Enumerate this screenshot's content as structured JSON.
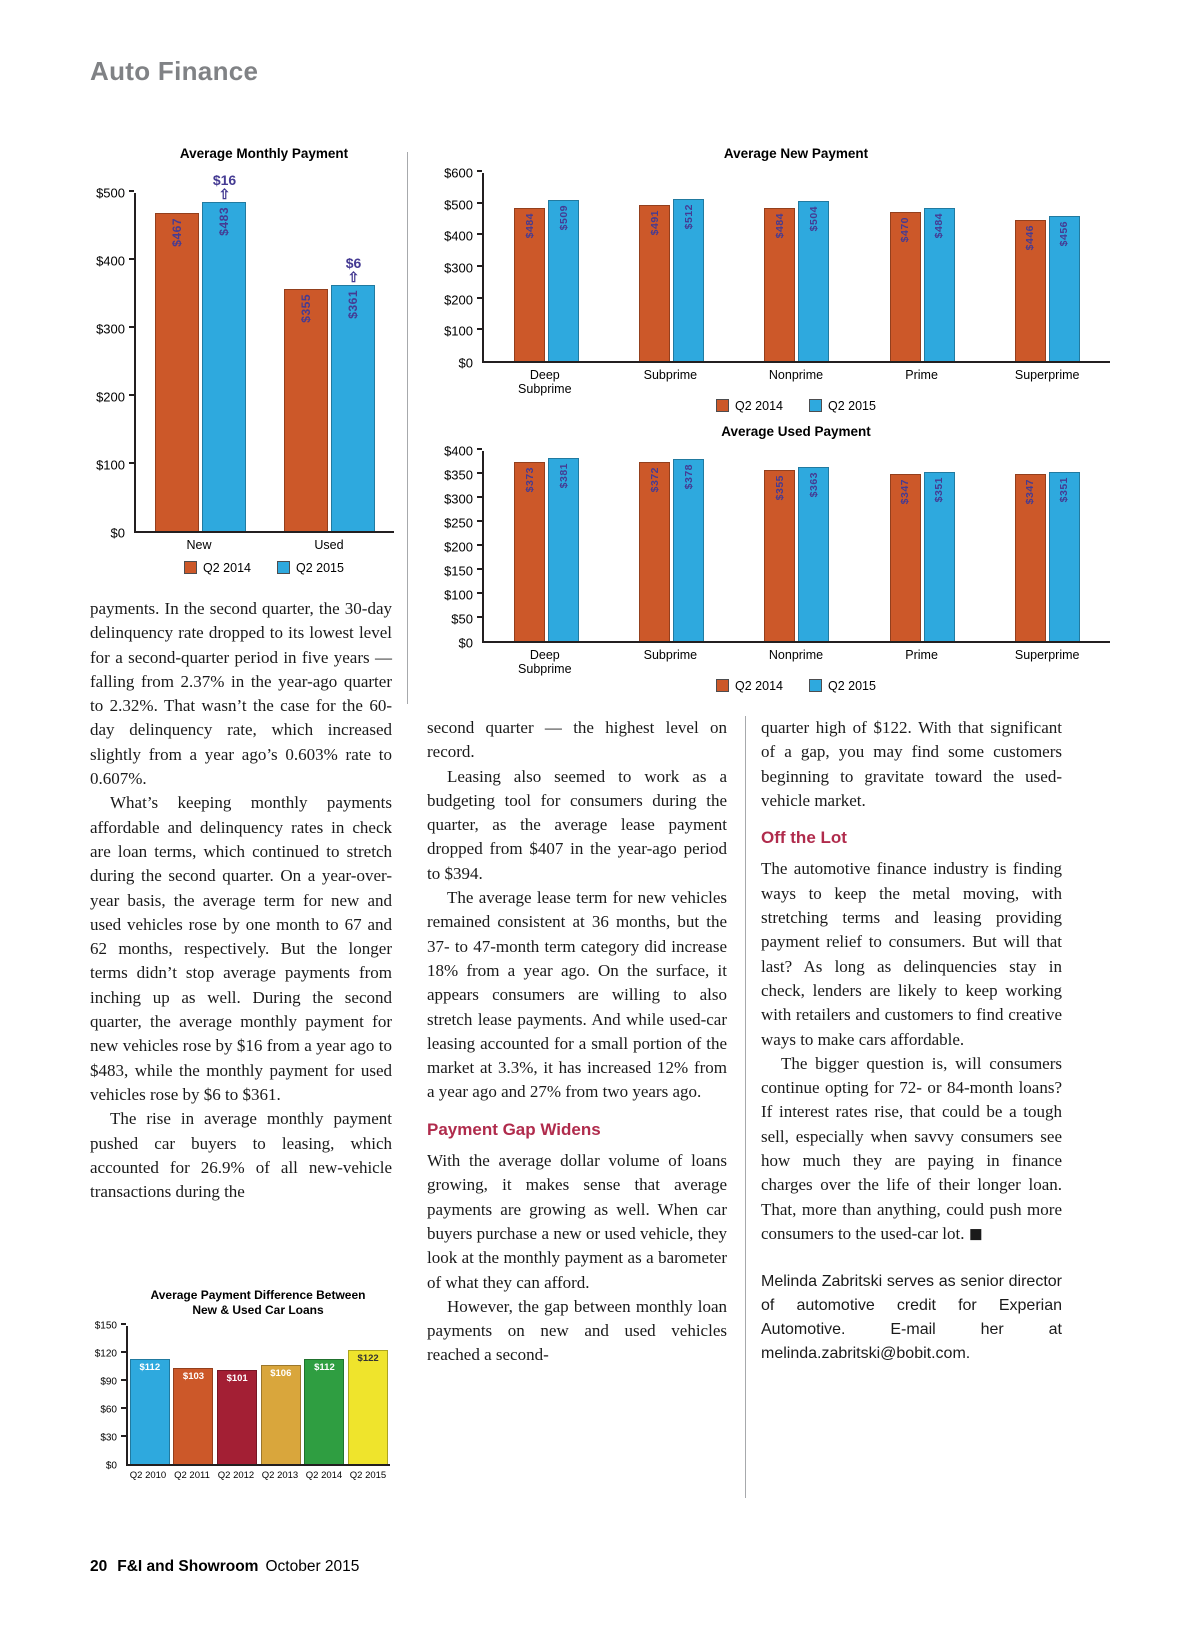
{
  "page": {
    "section_title": "Auto Finance",
    "footer": {
      "page_number": "20",
      "magazine": "F&I and Showroom",
      "issue": "October 2015"
    }
  },
  "colors": {
    "q2_2014": "#cc5829",
    "q2_2015": "#2ea9de",
    "bar_value_label": "#453b93",
    "section_heading": "#b02b4c",
    "page_title_gray": "#808285"
  },
  "chart_data": [
    {
      "id": "monthly-payment",
      "type": "bar",
      "title": "Average Monthly Payment",
      "categories": [
        "New",
        "Used"
      ],
      "series": [
        {
          "name": "Q2 2014",
          "color": "#cc5829",
          "values": [
            467,
            355
          ]
        },
        {
          "name": "Q2 2015",
          "color": "#2ea9de",
          "values": [
            483,
            361
          ]
        }
      ],
      "diff_labels": [
        "$16",
        "$6"
      ],
      "ylim": [
        0,
        500
      ],
      "ytick_step": 100,
      "legend_position": "bottom",
      "grid": false
    },
    {
      "id": "new-payment",
      "type": "bar",
      "title": "Average New Payment",
      "categories": [
        "Deep\nSubprime",
        "Subprime",
        "Nonprime",
        "Prime",
        "Superprime"
      ],
      "series": [
        {
          "name": "Q2 2014",
          "color": "#cc5829",
          "values": [
            484,
            491,
            484,
            470,
            446
          ]
        },
        {
          "name": "Q2 2015",
          "color": "#2ea9de",
          "values": [
            509,
            512,
            504,
            484,
            456
          ]
        }
      ],
      "ylim": [
        0,
        600
      ],
      "ytick_step": 100,
      "legend_position": "bottom",
      "grid": false
    },
    {
      "id": "used-payment",
      "type": "bar",
      "title": "Average Used Payment",
      "categories": [
        "Deep\nSubprime",
        "Subprime",
        "Nonprime",
        "Prime",
        "Superprime"
      ],
      "series": [
        {
          "name": "Q2 2014",
          "color": "#cc5829",
          "values": [
            373,
            372,
            355,
            347,
            347
          ]
        },
        {
          "name": "Q2 2015",
          "color": "#2ea9de",
          "values": [
            381,
            378,
            363,
            351,
            351
          ]
        }
      ],
      "ylim": [
        0,
        400
      ],
      "ytick_step": 50,
      "legend_position": "bottom",
      "grid": false
    },
    {
      "id": "payment-difference",
      "type": "bar",
      "title": "Average Payment Difference Between\nNew & Used Car Loans",
      "categories": [
        "Q2 2010",
        "Q2 2011",
        "Q2 2012",
        "Q2 2013",
        "Q2 2014",
        "Q2 2015"
      ],
      "values": [
        112,
        103,
        101,
        106,
        112,
        122
      ],
      "bar_colors": [
        "#2ea9de",
        "#cc5829",
        "#a31f34",
        "#d9a63c",
        "#2f9e41",
        "#efe42c"
      ],
      "label_colors": [
        "#ffffff",
        "#ffffff",
        "#ffffff",
        "#ffffff",
        "#ffffff",
        "#333333"
      ],
      "ylim": [
        0,
        150
      ],
      "ytick_step": 30,
      "grid": false
    }
  ],
  "columns": {
    "left": {
      "blocks": [
        {
          "type": "p",
          "indent": false,
          "text": "payments. In the second quarter, the 30-day delinquency rate dropped to its lowest level for a second-quarter period in five years — falling from 2.37% in the year-ago quarter to 2.32%. That wasn’t the case for the 60-day delinquency rate, which increased slightly from a year ago’s 0.603% rate to 0.607%."
        },
        {
          "type": "p",
          "indent": true,
          "text": "What’s keeping monthly payments affordable and delinquency rates in check are loan terms, which continued to stretch during the second quarter. On a year-over-year basis, the average term for new and used vehicles rose by one month to 67 and 62 months, respectively. But the longer terms didn’t stop average payments from inching up as well. During the second quarter, the average monthly payment for new vehicles rose by $16 from a year ago to $483, while the monthly payment for used vehicles rose by $6 to $361."
        },
        {
          "type": "p",
          "indent": true,
          "text": "The rise in average monthly payment pushed car buyers to leasing, which accounted for 26.9% of all new-vehicle transactions during the"
        }
      ]
    },
    "middle": {
      "blocks": [
        {
          "type": "p",
          "indent": false,
          "text": "second quarter — the highest level on record."
        },
        {
          "type": "p",
          "indent": true,
          "text": "Leasing also seemed to work as a budgeting tool for consumers during the quarter, as the average lease payment dropped from $407 in the year-ago period to $394."
        },
        {
          "type": "p",
          "indent": true,
          "text": "The average lease term for new vehicles remained consistent at 36 months, but the 37- to 47-month term category did increase 18% from a year ago. On the surface, it appears consumers are willing to also stretch lease payments. And while used-car leasing accounted for a small portion of the market at 3.3%, it has increased 12% from a year ago and 27% from two years ago."
        },
        {
          "type": "heading",
          "text": "Payment Gap Widens"
        },
        {
          "type": "p",
          "indent": false,
          "text": "With the average dollar volume of loans growing, it makes sense that average payments are growing as well. When car buyers purchase a new or used vehicle, they look at the monthly payment as a barometer of what they can afford."
        },
        {
          "type": "p",
          "indent": true,
          "text": "However, the gap between monthly loan payments on new and used vehicles reached a second-"
        }
      ]
    },
    "right": {
      "blocks": [
        {
          "type": "p",
          "indent": false,
          "text": "quarter high of $122. With that significant of a gap, you may find some customers beginning to gravitate toward the used-vehicle market."
        },
        {
          "type": "heading",
          "text": "Off the Lot"
        },
        {
          "type": "p",
          "indent": false,
          "text": "The automotive finance industry is finding ways to keep the metal moving, with stretching terms and leasing providing payment relief to consumers. But will that last? As long as delinquencies stay in check, lenders are likely to keep working with retailers and customers to find creative ways to make cars affordable."
        },
        {
          "type": "p",
          "indent": true,
          "text": "The bigger question is, will consumers continue opting for 72- or 84-month loans? If interest rates rise, that could be a tough sell, especially when savvy consumers see how much they are paying in finance charges over the life of their longer loan. That, more than anything, could push more consumers to the used-car lot. ◼"
        },
        {
          "type": "bio",
          "text": "Melinda Zabritski serves as senior director of automotive credit for Experian Automotive. E-mail her at melinda.zabritski@bobit.com."
        }
      ]
    }
  }
}
